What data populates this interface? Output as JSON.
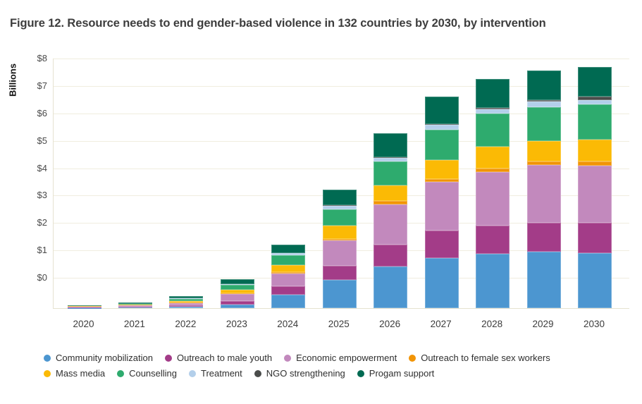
{
  "figure": {
    "title": "Figure 12. Resource needs to end gender-based violence in 132 countries by 2030, by intervention"
  },
  "y_axis": {
    "label": "Billions",
    "ticks": [
      "$8",
      "$7",
      "$6",
      "$5",
      "$4",
      "$3",
      "$2",
      "$1",
      "$0"
    ]
  },
  "x_axis": {
    "years": [
      "2020",
      "2021",
      "2022",
      "2023",
      "2024",
      "2025",
      "2026",
      "2027",
      "2028",
      "2029",
      "2030"
    ]
  },
  "legend": {
    "marker": "circle",
    "row_split_index": 4
  },
  "chart_data": {
    "type": "bar",
    "stacked": true,
    "title": "Figure 12. Resource needs to end gender-based violence in 132 countries by 2030, by intervention",
    "ylabel": "Billions",
    "xlabel": "",
    "ylim": [
      -1,
      8
    ],
    "gridlines_labeled": [
      8,
      7,
      6,
      5,
      4,
      3,
      2,
      1,
      0
    ],
    "grid": true,
    "legend_position": "bottom",
    "grid_color": "#f0eddf",
    "axis_color": "#e6e2d0",
    "units": "US$ billions",
    "categories": [
      "2020",
      "2021",
      "2022",
      "2023",
      "2024",
      "2025",
      "2026",
      "2027",
      "2028",
      "2029",
      "2030"
    ],
    "series": [
      {
        "name": "Community mobilization",
        "color": "#4c96d0",
        "values": [
          0.01,
          0.03,
          0.06,
          0.14,
          0.5,
          1.03,
          1.51,
          1.83,
          1.98,
          2.06,
          2.01
        ]
      },
      {
        "name": "Outreach to male youth",
        "color": "#a33c88",
        "values": [
          0.02,
          0.03,
          0.05,
          0.12,
          0.31,
          0.51,
          0.8,
          1.0,
          1.02,
          1.05,
          1.1
        ]
      },
      {
        "name": "Economic empowerment",
        "color": "#c289bd",
        "values": [
          0.03,
          0.04,
          0.08,
          0.25,
          0.46,
          0.93,
          1.47,
          1.78,
          1.97,
          2.1,
          2.1
        ]
      },
      {
        "name": "Outreach to female sex workers",
        "color": "#f19405",
        "values": [
          0.0,
          0.01,
          0.02,
          0.02,
          0.04,
          0.06,
          0.12,
          0.11,
          0.13,
          0.15,
          0.15
        ]
      },
      {
        "name": "Mass media",
        "color": "#fbba05",
        "values": [
          0.01,
          0.02,
          0.06,
          0.15,
          0.27,
          0.47,
          0.58,
          0.69,
          0.8,
          0.74,
          0.8
        ]
      },
      {
        "name": "Counselling",
        "color": "#2eab6e",
        "values": [
          0.02,
          0.03,
          0.07,
          0.17,
          0.36,
          0.6,
          0.86,
          1.1,
          1.2,
          1.22,
          1.27
        ]
      },
      {
        "name": "Treatment",
        "color": "#b3cfea",
        "values": [
          0.0,
          0.0,
          0.01,
          0.02,
          0.07,
          0.13,
          0.15,
          0.17,
          0.15,
          0.22,
          0.17
        ]
      },
      {
        "name": "NGO strengthening",
        "color": "#4a4c4b",
        "values": [
          0.0,
          0.0,
          0.0,
          0.0,
          0.01,
          0.02,
          0.02,
          0.03,
          0.06,
          0.04,
          0.11
        ]
      },
      {
        "name": "Progam support",
        "color": "#006a52",
        "values": [
          0.02,
          0.04,
          0.1,
          0.19,
          0.3,
          0.58,
          0.88,
          1.02,
          1.06,
          1.1,
          1.08
        ]
      }
    ]
  }
}
